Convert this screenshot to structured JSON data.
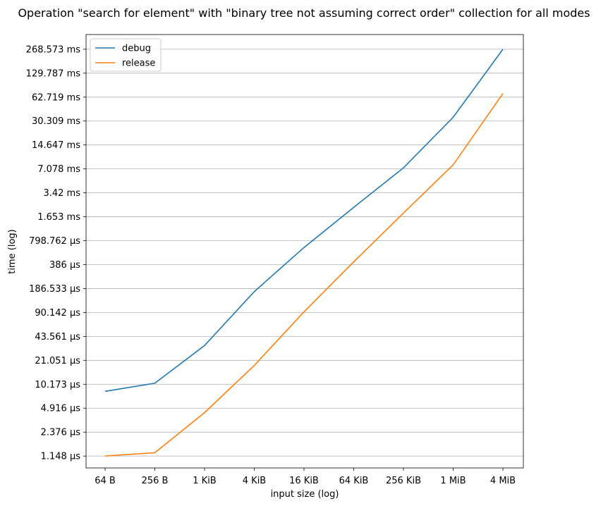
{
  "chart_data": {
    "type": "line",
    "title": "Operation \"search for element\" with \"binary tree not assuming correct order\" collection for all modes",
    "xlabel": "input size (log)",
    "ylabel": "time (log)",
    "x_scale": "log",
    "y_scale": "log",
    "categories": [
      "64 B",
      "256 B",
      "1 KiB",
      "4 KiB",
      "16 KiB",
      "64 KiB",
      "256 KiB",
      "1 MiB",
      "4 MiB"
    ],
    "y_ticks": [
      "1.148 µs",
      "2.376 µs",
      "4.916 µs",
      "10.173 µs",
      "21.051 µs",
      "43.561 µs",
      "90.142 µs",
      "186.533 µs",
      "386 µs",
      "798.762 µs",
      "1.653 ms",
      "3.42 ms",
      "7.078 ms",
      "14.647 ms",
      "30.309 ms",
      "62.719 ms",
      "129.787 ms",
      "268.573 ms"
    ],
    "y_tick_values_us": [
      1.148,
      2.376,
      4.916,
      10.173,
      21.051,
      43.561,
      90.142,
      186.533,
      386,
      798.762,
      1653,
      3420,
      7078,
      14647,
      30309,
      62719,
      129787,
      268573
    ],
    "ylim_us": [
      0.8,
      420000
    ],
    "grid": "y",
    "legend": "top-left",
    "series": [
      {
        "name": "debug",
        "color": "#1f77b4",
        "values_us": [
          8.2,
          10.5,
          33,
          170,
          650,
          2200,
          7300,
          34000,
          268573
        ]
      },
      {
        "name": "release",
        "color": "#ff7f0e",
        "values_us": [
          1.15,
          1.27,
          4.3,
          18,
          92,
          420,
          1850,
          8000,
          70000
        ]
      }
    ]
  }
}
